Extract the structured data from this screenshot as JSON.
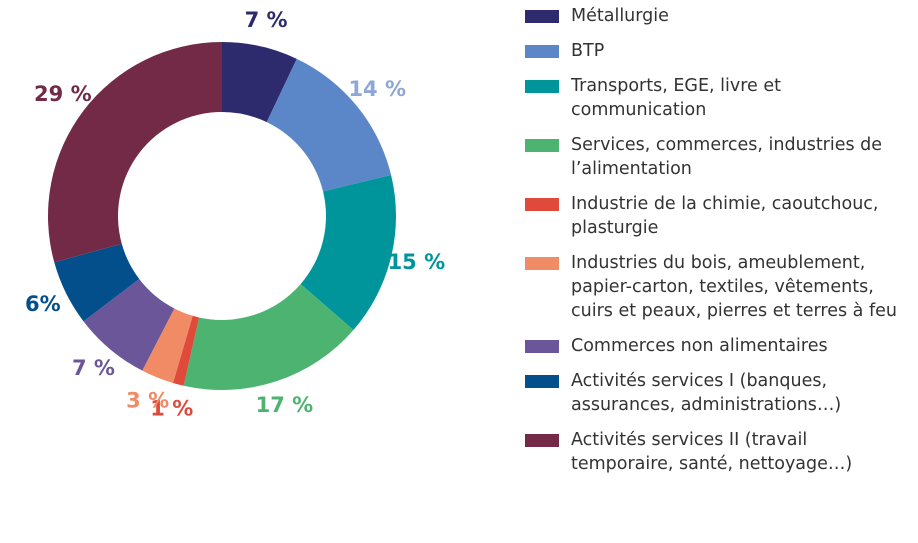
{
  "chart_data": {
    "type": "donut",
    "categories": [
      "Métallurgie",
      "BTP",
      "Transports, EGE, livre et communication",
      "Services, commerces, industries de l’alimentation",
      "Industrie de la chimie, caoutchouc, plasturgie",
      "Industries du bois, ameublement, papier-carton, textiles, vêtements, cuirs et peaux, pierres et terres à feu",
      "Commerces non alimentaires",
      "Activités services I (banques, assurances, administrations…)",
      "Activités services II (travail temporaire, santé, nettoyage…)"
    ],
    "values": [
      7,
      14,
      15,
      17,
      1,
      3,
      7,
      6,
      29
    ],
    "value_labels": [
      "7 %",
      "14 %",
      "15 %",
      "17 %",
      "1 %",
      "3 %",
      "7 %",
      "6%",
      "29 %"
    ],
    "colors": [
      "#2e2a6e",
      "#5b87c8",
      "#00959b",
      "#4cb470",
      "#e04a3a",
      "#f08b65",
      "#6a5699",
      "#034f8c",
      "#722a47"
    ],
    "label_colors": [
      "#2e2a6e",
      "#8fa6d8",
      "#00959b",
      "#4cb470",
      "#e04a3a",
      "#f08b65",
      "#6a5699",
      "#034f8c",
      "#722a47"
    ],
    "legend": "right"
  }
}
